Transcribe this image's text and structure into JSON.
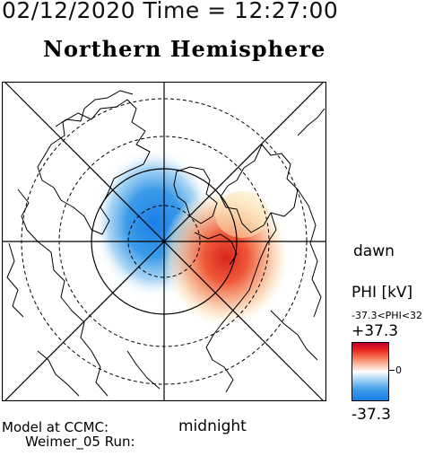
{
  "header": {
    "timestamp": "02/12/2020 Time = 12:27:00",
    "title": "Northern Hemisphere"
  },
  "map": {
    "projection": "polar",
    "orientation_labels": {
      "dawn": "dawn",
      "midnight": "midnight"
    },
    "potential_pattern": [
      {
        "sign": "negative",
        "color": "#1a7fe6",
        "description_side": "dusk"
      },
      {
        "sign": "positive",
        "color": "#e8241c",
        "description_side": "dawn"
      }
    ]
  },
  "legend": {
    "title": "PHI [kV]",
    "range_text": "-37.3<PHI<32",
    "max_label": "+37.3",
    "zero_label": "0",
    "min_label": "-37.3",
    "colors": {
      "max": "#c0002a",
      "zero": "#ffffff",
      "min": "#1a7fe6"
    }
  },
  "footer": {
    "credit_line_1": "Model at CCMC:",
    "credit_line_2": "Weimer_05 Run:"
  }
}
